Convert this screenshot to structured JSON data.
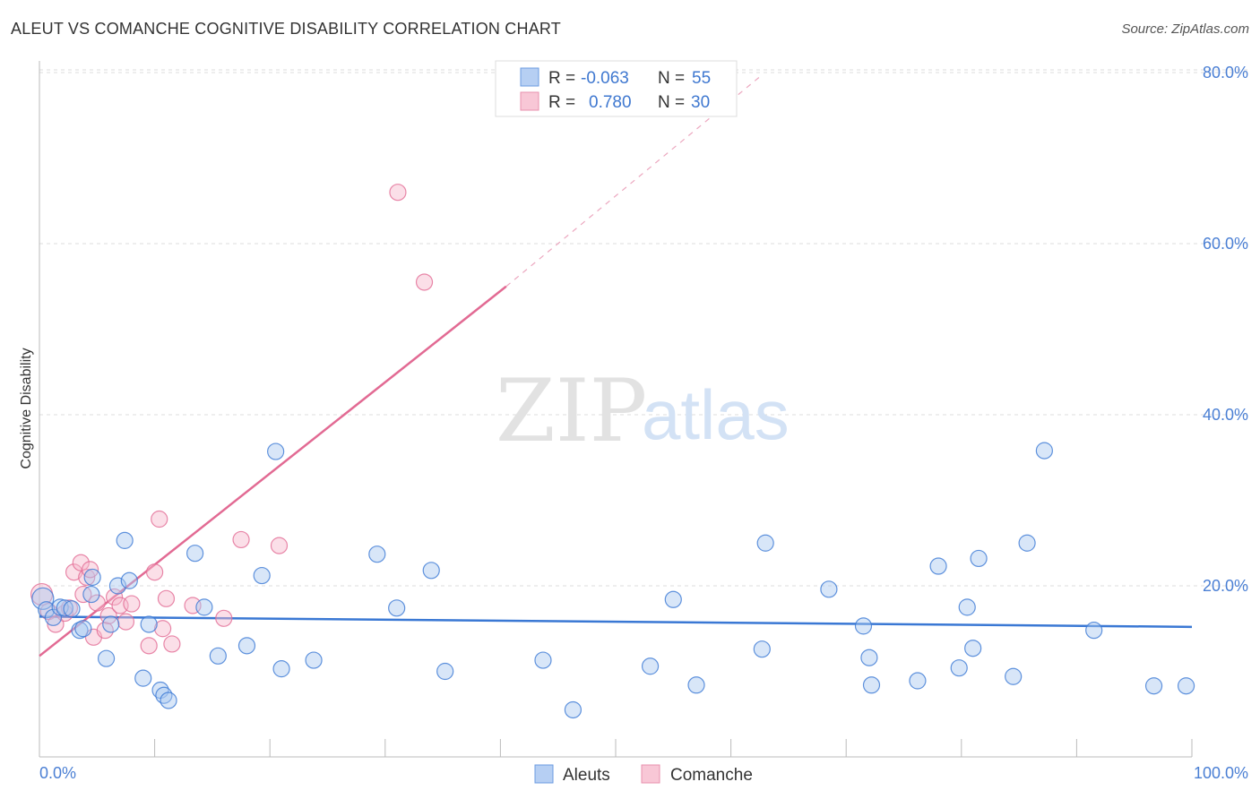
{
  "header": {
    "title": "ALEUT VS COMANCHE COGNITIVE DISABILITY CORRELATION CHART",
    "source": "Source: ZipAtlas.com"
  },
  "watermark": {
    "zip": "ZIP",
    "atlas": "atlas"
  },
  "colors": {
    "aleut": "#3a78d4",
    "aleut_fill": "#a9c8f0",
    "comanche": "#e26a93",
    "comanche_fill": "#f6b8cc",
    "axis_label": "#4a7fd4",
    "grid": "#d8d8d8"
  },
  "legend": {
    "rows": [
      {
        "r_label": "R =",
        "r_value": "-0.063",
        "n_label": "N =",
        "n_value": "55"
      },
      {
        "r_label": "R =",
        "r_value": "0.780",
        "n_label": "N =",
        "n_value": "30"
      }
    ]
  },
  "chart_data": {
    "type": "scatter",
    "xlabel": "",
    "ylabel": "Cognitive Disability",
    "xlim": [
      0,
      100
    ],
    "ylim": [
      0,
      80
    ],
    "x_tick_labels": [
      "0.0%",
      "100.0%"
    ],
    "y_ticks": [
      20,
      40,
      60,
      80
    ],
    "y_tick_labels": [
      "20.0%",
      "40.0%",
      "60.0%",
      "80.0%"
    ],
    "grid": true,
    "series": [
      {
        "name": "Aleuts",
        "color": "#3a78d4",
        "trend": {
          "x0": 0,
          "y0": 16.4,
          "x1": 100,
          "y1": 15.2
        },
        "points": [
          [
            0.3,
            18.5
          ],
          [
            0.6,
            17.2
          ],
          [
            1.2,
            16.3
          ],
          [
            1.8,
            17.5
          ],
          [
            2.2,
            17.4
          ],
          [
            2.8,
            17.3
          ],
          [
            3.5,
            14.8
          ],
          [
            3.8,
            15.0
          ],
          [
            4.5,
            19.0
          ],
          [
            4.6,
            21.0
          ],
          [
            5.8,
            11.5
          ],
          [
            6.2,
            15.5
          ],
          [
            6.8,
            20.0
          ],
          [
            7.4,
            25.3
          ],
          [
            7.8,
            20.6
          ],
          [
            9.0,
            9.2
          ],
          [
            9.5,
            15.5
          ],
          [
            10.5,
            7.8
          ],
          [
            10.8,
            7.2
          ],
          [
            11.2,
            6.6
          ],
          [
            13.5,
            23.8
          ],
          [
            14.3,
            17.5
          ],
          [
            15.5,
            11.8
          ],
          [
            18.0,
            13.0
          ],
          [
            19.3,
            21.2
          ],
          [
            20.5,
            35.7
          ],
          [
            21.0,
            10.3
          ],
          [
            23.8,
            11.3
          ],
          [
            29.3,
            23.7
          ],
          [
            31.0,
            17.4
          ],
          [
            34.0,
            21.8
          ],
          [
            35.2,
            10.0
          ],
          [
            43.7,
            11.3
          ],
          [
            46.3,
            5.5
          ],
          [
            53.0,
            10.6
          ],
          [
            55.0,
            18.4
          ],
          [
            57.0,
            8.4
          ],
          [
            62.7,
            12.6
          ],
          [
            63.0,
            25.0
          ],
          [
            68.5,
            19.6
          ],
          [
            71.5,
            15.3
          ],
          [
            72.0,
            11.6
          ],
          [
            72.2,
            8.4
          ],
          [
            76.2,
            8.9
          ],
          [
            78.0,
            22.3
          ],
          [
            79.8,
            10.4
          ],
          [
            80.5,
            17.5
          ],
          [
            81.0,
            12.7
          ],
          [
            81.5,
            23.2
          ],
          [
            84.5,
            9.4
          ],
          [
            85.7,
            25.0
          ],
          [
            87.2,
            35.8
          ],
          [
            91.5,
            14.8
          ],
          [
            96.7,
            8.3
          ],
          [
            99.5,
            8.3
          ]
        ]
      },
      {
        "name": "Comanche",
        "color": "#e26a93",
        "trend": {
          "x0": 0,
          "y0": 11.8,
          "x1": 40.5,
          "y1": 55.0,
          "dash_x1": 62.5,
          "dash_y1": 79.5
        },
        "points": [
          [
            0.2,
            19.0
          ],
          [
            0.8,
            17.0
          ],
          [
            1.4,
            15.5
          ],
          [
            2.2,
            16.8
          ],
          [
            2.6,
            17.4
          ],
          [
            3.0,
            21.6
          ],
          [
            3.6,
            22.7
          ],
          [
            3.8,
            19.0
          ],
          [
            4.1,
            21.0
          ],
          [
            4.4,
            21.9
          ],
          [
            4.7,
            14.0
          ],
          [
            5.0,
            18.0
          ],
          [
            5.7,
            14.8
          ],
          [
            6.0,
            16.5
          ],
          [
            6.5,
            18.7
          ],
          [
            7.0,
            17.7
          ],
          [
            7.5,
            15.8
          ],
          [
            8.0,
            17.9
          ],
          [
            9.5,
            13.0
          ],
          [
            10.0,
            21.6
          ],
          [
            10.4,
            27.8
          ],
          [
            10.7,
            15.0
          ],
          [
            11.0,
            18.5
          ],
          [
            11.5,
            13.2
          ],
          [
            13.3,
            17.7
          ],
          [
            16.0,
            16.2
          ],
          [
            17.5,
            25.4
          ],
          [
            20.8,
            24.7
          ],
          [
            31.1,
            66.0
          ],
          [
            33.4,
            55.5
          ]
        ]
      }
    ]
  },
  "bottom_legend": {
    "aleut_label": "Aleuts",
    "comanche_label": "Comanche"
  }
}
